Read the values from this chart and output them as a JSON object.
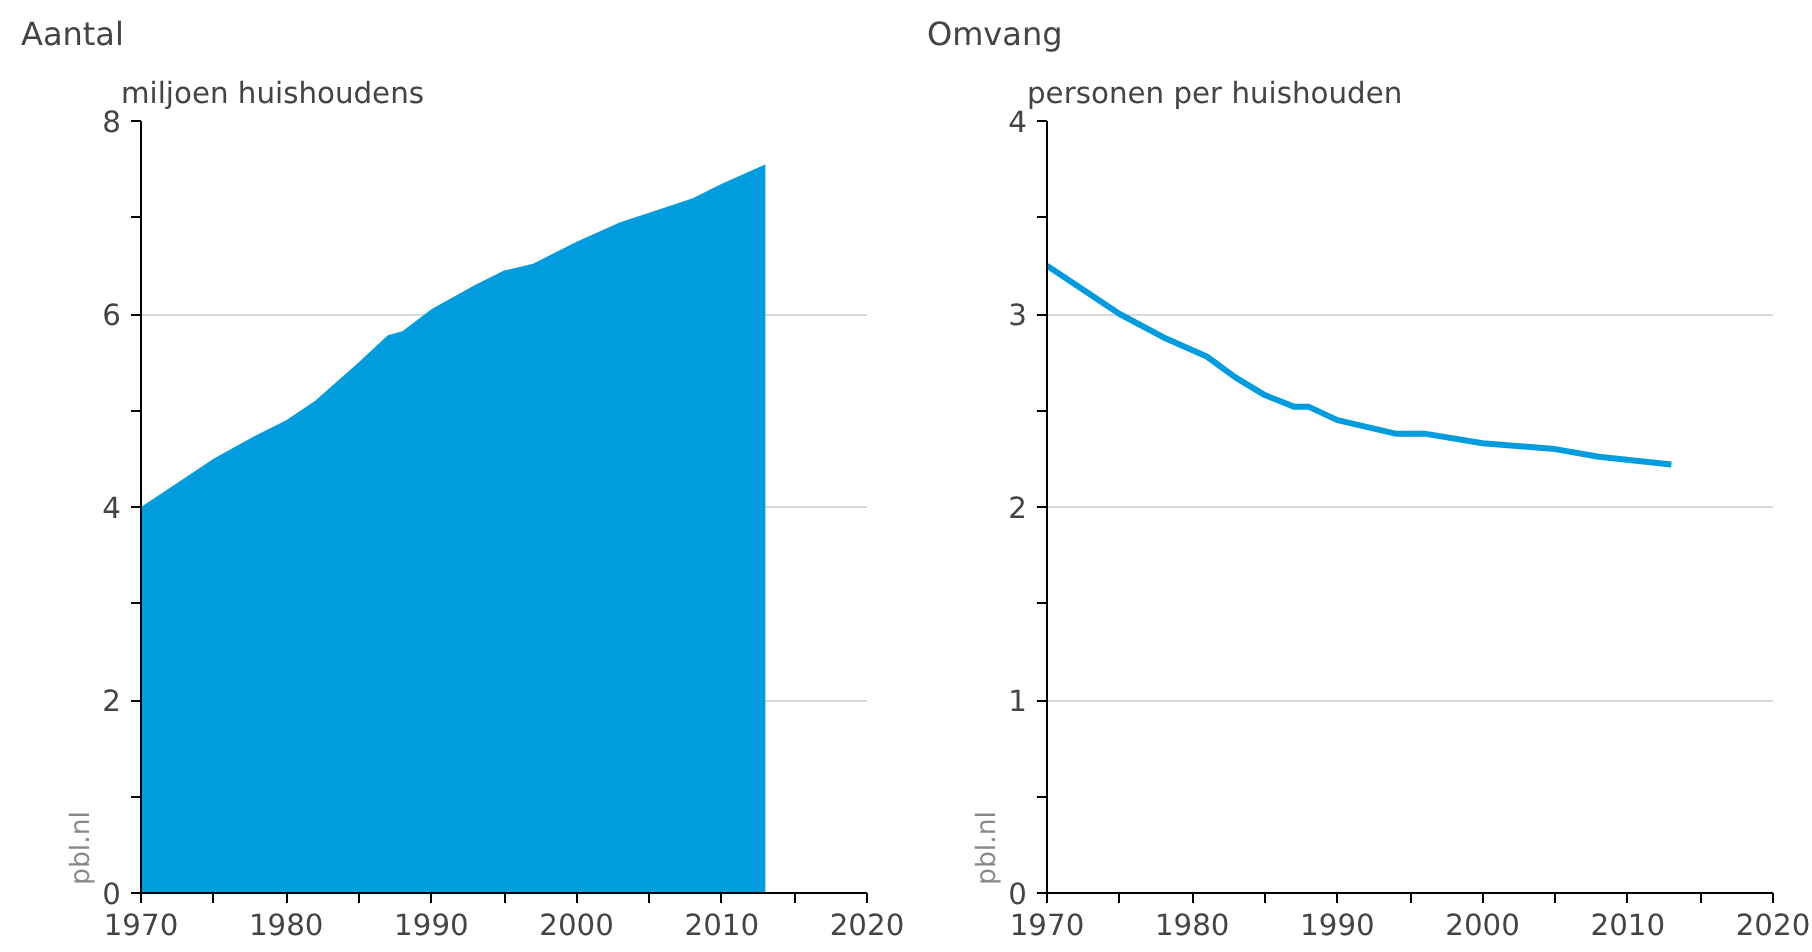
{
  "chart_data": [
    {
      "type": "area",
      "title": "Aantal",
      "ylabel": "miljoen huishoudens",
      "x": [
        1970,
        1972,
        1975,
        1978,
        1980,
        1982,
        1985,
        1987,
        1988,
        1990,
        1993,
        1995,
        1997,
        2000,
        2003,
        2005,
        2008,
        2010,
        2013
      ],
      "series": [
        {
          "color": "#009cde",
          "values": [
            4.0,
            4.2,
            4.5,
            4.75,
            4.9,
            5.1,
            5.5,
            5.78,
            5.82,
            6.05,
            6.3,
            6.45,
            6.52,
            6.75,
            6.95,
            7.05,
            7.2,
            7.35,
            7.55
          ]
        }
      ],
      "xlim": [
        1970,
        2020
      ],
      "ylim": [
        0,
        8
      ],
      "xticks": [
        1970,
        {
          "value": 1975,
          "label": null
        },
        1980,
        {
          "value": 1985,
          "label": null
        },
        1990,
        {
          "value": 1995,
          "label": null
        },
        2000,
        {
          "value": 2005,
          "label": null
        },
        2010,
        {
          "value": 2015,
          "label": null
        },
        2020
      ],
      "yticks": [
        0,
        {
          "value": 1,
          "label": null
        },
        2,
        {
          "value": 3,
          "label": null
        },
        4,
        {
          "value": 5,
          "label": null
        },
        6,
        {
          "value": 7,
          "label": null
        },
        8
      ],
      "grid": "y",
      "annotations": [
        "pbl.nl"
      ]
    },
    {
      "type": "line",
      "title": "Omvang",
      "ylabel": "personen per huishouden",
      "x": [
        1970,
        1972,
        1975,
        1978,
        1981,
        1983,
        1985,
        1987,
        1988,
        1990,
        1994,
        1996,
        2000,
        2005,
        2008,
        2013
      ],
      "series": [
        {
          "color": "#009cde",
          "values": [
            3.25,
            3.15,
            3.0,
            2.88,
            2.78,
            2.67,
            2.58,
            2.52,
            2.52,
            2.45,
            2.38,
            2.38,
            2.33,
            2.3,
            2.26,
            2.22
          ]
        }
      ],
      "xlim": [
        1970,
        2020
      ],
      "ylim": [
        0,
        4
      ],
      "xticks": [
        1970,
        {
          "value": 1975,
          "label": null
        },
        1980,
        {
          "value": 1985,
          "label": null
        },
        1990,
        {
          "value": 1995,
          "label": null
        },
        2000,
        {
          "value": 2005,
          "label": null
        },
        2010,
        {
          "value": 2015,
          "label": null
        },
        2020
      ],
      "yticks": [
        0,
        {
          "value": 0.5,
          "label": null
        },
        1,
        {
          "value": 1.5,
          "label": null
        },
        2,
        {
          "value": 2.5,
          "label": null
        },
        3,
        {
          "value": 3.5,
          "label": null
        },
        4
      ],
      "grid": "y",
      "line_style": "solid",
      "annotations": [
        "pbl.nl"
      ]
    }
  ]
}
